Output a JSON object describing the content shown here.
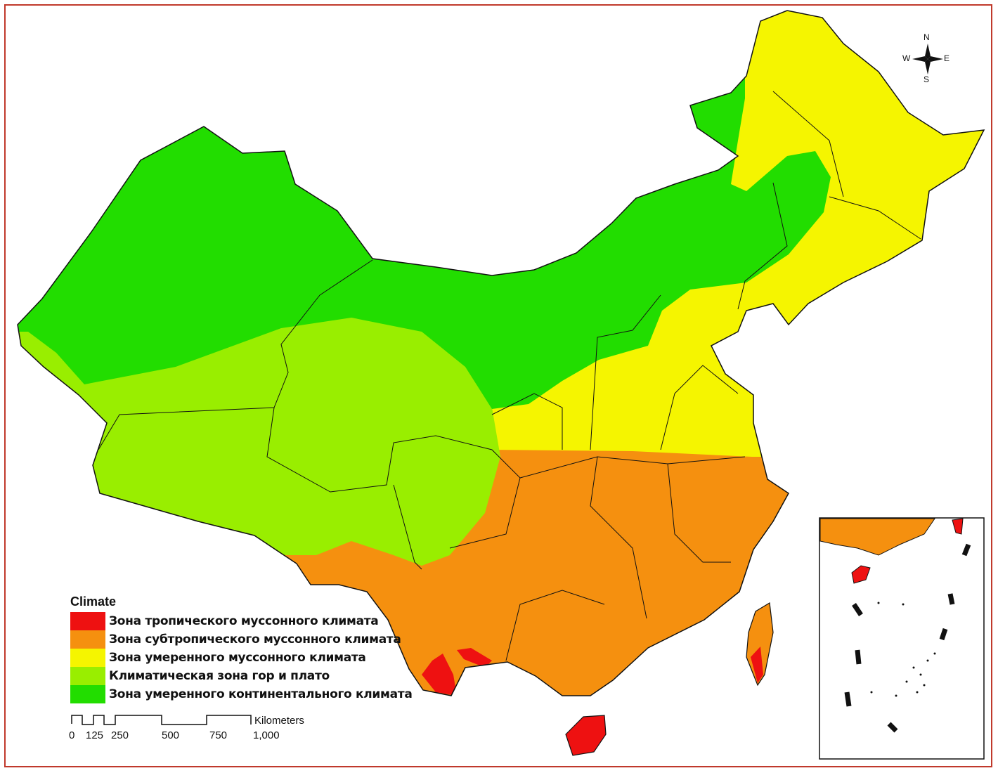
{
  "legend": {
    "title": "Climate",
    "items": [
      {
        "label": "Зона тропического муссонного климата",
        "color": "#ee1111"
      },
      {
        "label": "Зона субтропического муссонного климата",
        "color": "#f5900f"
      },
      {
        "label": "Зона умеренного муссонного климата",
        "color": "#f5f500"
      },
      {
        "label": "Климатическая зона гор и плато",
        "color": "#99ee00"
      },
      {
        "label": "Зона умеренного континентального климата",
        "color": "#22dd00"
      }
    ]
  },
  "scale_bar": {
    "unit": "Kilometers",
    "ticks": [
      "0",
      "125",
      "250",
      "500",
      "750",
      "1,000"
    ]
  },
  "compass": {
    "n": "N",
    "s": "S",
    "e": "E",
    "w": "W"
  },
  "colors": {
    "frame": "#c0392b",
    "border": "#111111"
  }
}
